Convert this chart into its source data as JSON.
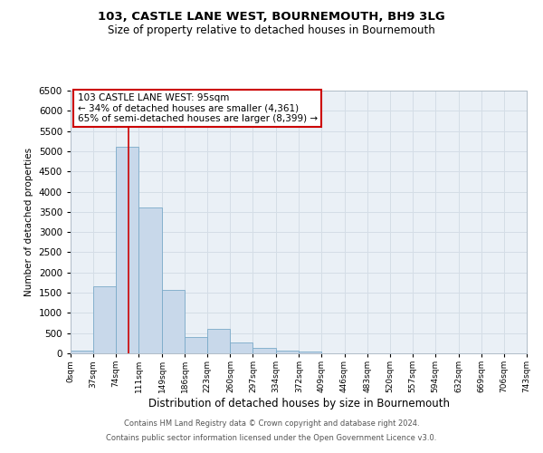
{
  "title1": "103, CASTLE LANE WEST, BOURNEMOUTH, BH9 3LG",
  "title2": "Size of property relative to detached houses in Bournemouth",
  "xlabel": "Distribution of detached houses by size in Bournemouth",
  "ylabel": "Number of detached properties",
  "bin_edges": [
    0,
    37,
    74,
    111,
    149,
    186,
    223,
    260,
    297,
    334,
    372,
    409,
    446,
    483,
    520,
    557,
    594,
    632,
    669,
    706,
    743
  ],
  "bar_heights": [
    75,
    1650,
    5100,
    3600,
    1580,
    400,
    600,
    275,
    125,
    75,
    50,
    0,
    0,
    0,
    0,
    0,
    0,
    0,
    0,
    0
  ],
  "bar_color": "#c8d8ea",
  "bar_edge_color": "#7aaac8",
  "red_line_x": 95,
  "red_line_color": "#cc0000",
  "ylim": [
    0,
    6500
  ],
  "xlim": [
    0,
    743
  ],
  "yticks": [
    0,
    500,
    1000,
    1500,
    2000,
    2500,
    3000,
    3500,
    4000,
    4500,
    5000,
    5500,
    6000,
    6500
  ],
  "annotation_text": "103 CASTLE LANE WEST: 95sqm\n← 34% of detached houses are smaller (4,361)\n65% of semi-detached houses are larger (8,399) →",
  "annotation_box_color": "#ffffff",
  "annotation_box_edge": "#cc0000",
  "footer1": "Contains HM Land Registry data © Crown copyright and database right 2024.",
  "footer2": "Contains public sector information licensed under the Open Government Licence v3.0.",
  "grid_color": "#d4dde6",
  "bg_color": "#eaf0f6",
  "tick_labels": [
    "0sqm",
    "37sqm",
    "74sqm",
    "111sqm",
    "149sqm",
    "186sqm",
    "223sqm",
    "260sqm",
    "297sqm",
    "334sqm",
    "372sqm",
    "409sqm",
    "446sqm",
    "483sqm",
    "520sqm",
    "557sqm",
    "594sqm",
    "632sqm",
    "669sqm",
    "706sqm",
    "743sqm"
  ]
}
